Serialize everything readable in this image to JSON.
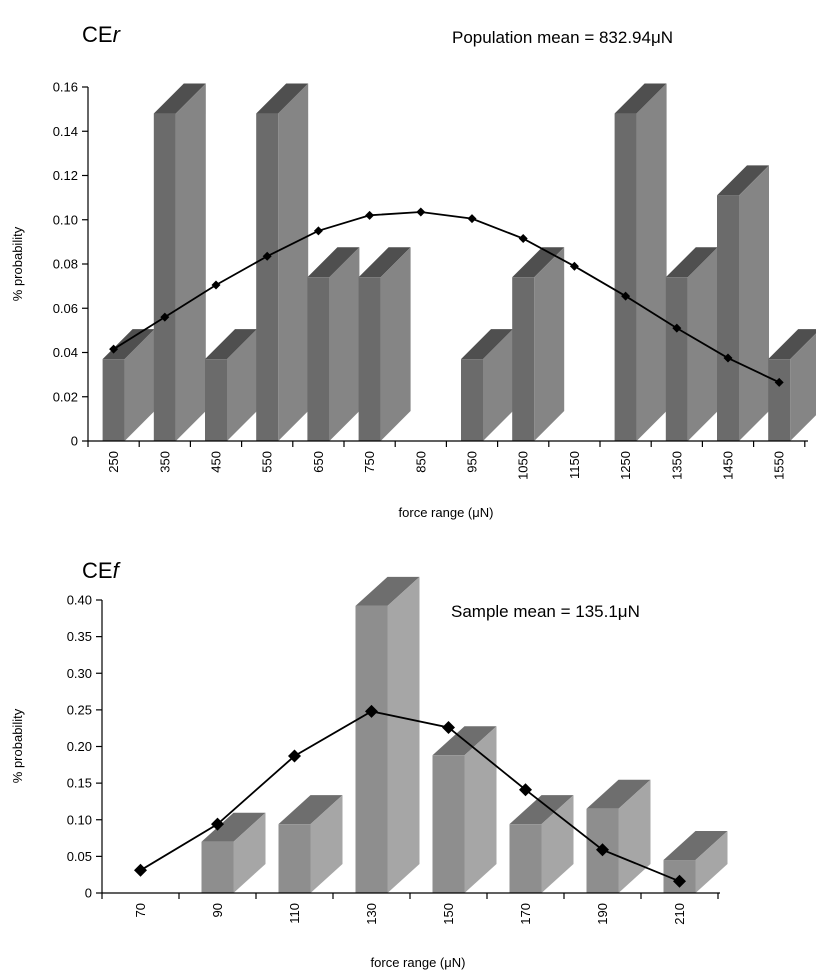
{
  "chart_data": [
    {
      "type": "bar",
      "title": "CEr",
      "title_base": "CE",
      "title_italic": "r",
      "annotation": "Population mean = 832.94μN",
      "xlabel": "force range (μN)",
      "ylabel": "% probability",
      "ylim": [
        0,
        0.16
      ],
      "yticks": [
        "0",
        "0.02",
        "0.04",
        "0.06",
        "0.08",
        "0.10",
        "0.12",
        "0.14",
        "0.16"
      ],
      "categories": [
        "250",
        "350",
        "450",
        "550",
        "650",
        "750",
        "850",
        "950",
        "1050",
        "1150",
        "1250",
        "1350",
        "1450",
        "1550"
      ],
      "values": [
        0.037,
        0.148,
        0.037,
        0.148,
        0.074,
        0.074,
        0,
        0.037,
        0.074,
        0,
        0.148,
        0.074,
        0.111,
        0.037
      ],
      "fit_line": [
        0.0415,
        0.056,
        0.0705,
        0.0835,
        0.095,
        0.102,
        0.1035,
        0.1005,
        0.0915,
        0.079,
        0.0655,
        0.051,
        0.0375,
        0.0265
      ],
      "bar_colors": {
        "front": "#6b6b6b",
        "side": "#858585",
        "top": "#4f4f4f"
      },
      "grid": false
    },
    {
      "type": "bar",
      "title": "CEf",
      "title_base": "CE",
      "title_italic": "f",
      "annotation": "Sample mean = 135.1μN",
      "xlabel": "force range (μN)",
      "ylabel": "% probability",
      "ylim": [
        0,
        0.4
      ],
      "yticks": [
        "0",
        "0.05",
        "0.10",
        "0.15",
        "0.20",
        "0.25",
        "0.30",
        "0.35",
        "0.40"
      ],
      "categories": [
        "70",
        "90",
        "110",
        "130",
        "150",
        "170",
        "190",
        "210"
      ],
      "values": [
        0,
        0.07,
        0.094,
        0.392,
        0.188,
        0.094,
        0.115,
        0.045
      ],
      "fit_line": [
        0.031,
        0.094,
        0.187,
        0.248,
        0.226,
        0.141,
        0.059,
        0.016
      ],
      "bar_colors": {
        "front": "#8e8e8e",
        "side": "#a6a6a6",
        "top": "#6e6e6e"
      },
      "grid": false
    }
  ]
}
